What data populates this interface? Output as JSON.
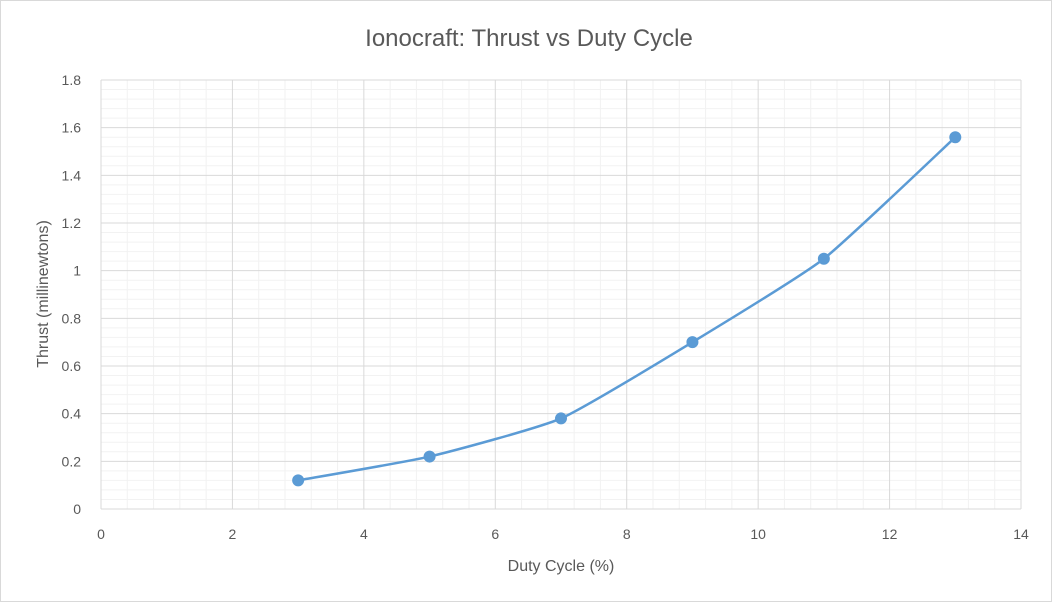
{
  "chart_data": {
    "type": "scatter",
    "title": "Ionocraft: Thrust vs Duty Cycle",
    "xlabel": "Duty Cycle (%)",
    "ylabel": "Thrust (millinewtons)",
    "xlim": [
      0,
      14
    ],
    "ylim": [
      0,
      1.8
    ],
    "xticks": [
      "0",
      "2",
      "4",
      "6",
      "8",
      "10",
      "12",
      "14"
    ],
    "yticks": [
      "0",
      "0.2",
      "0.4",
      "0.6",
      "0.8",
      "1",
      "1.2",
      "1.4",
      "1.6",
      "1.8"
    ],
    "x_tick_values": [
      0,
      2,
      4,
      6,
      8,
      10,
      12,
      14
    ],
    "y_tick_values": [
      0,
      0.2,
      0.4,
      0.6,
      0.8,
      1.0,
      1.2,
      1.4,
      1.6,
      1.8
    ],
    "grid": "major and minor",
    "legend": "none",
    "series": [
      {
        "x": [
          3,
          5,
          7,
          9,
          11,
          13
        ],
        "y": [
          0.12,
          0.22,
          0.38,
          0.7,
          1.05,
          1.56
        ],
        "style": "smooth line with markers"
      }
    ],
    "colors": {
      "series": "#5b9bd5",
      "major_grid": "#d9d9d9",
      "minor_grid": "#f2f2f2",
      "text": "#595959",
      "border": "#d9d9d9"
    }
  }
}
